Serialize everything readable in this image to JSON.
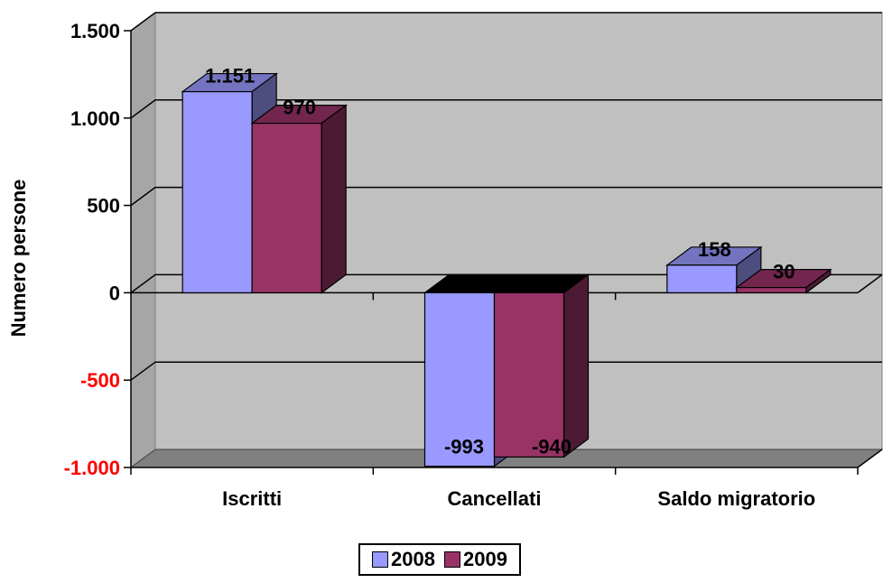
{
  "chart_data": {
    "type": "bar",
    "title": "",
    "xlabel": "",
    "ylabel": "Numero persone",
    "categories": [
      "Iscritti",
      "Cancellati",
      "Saldo migratorio"
    ],
    "series": [
      {
        "name": "2008",
        "values": [
          1151,
          -993,
          158
        ],
        "labels": [
          "1.151",
          "-993",
          "158"
        ],
        "color": "#9999ff"
      },
      {
        "name": "2009",
        "values": [
          970,
          -940,
          30
        ],
        "labels": [
          "970",
          "-940",
          "30"
        ],
        "color": "#993366"
      }
    ],
    "ylim": [
      -1000,
      1500
    ],
    "yticks": [
      -1000,
      -500,
      0,
      500,
      1000,
      1500
    ],
    "ytick_labels": [
      "-1.000",
      "-500",
      "0",
      "500",
      "1.000",
      "1.500"
    ],
    "negative_tick_color": "#ff0000",
    "grid": true,
    "legend_position": "bottom"
  }
}
